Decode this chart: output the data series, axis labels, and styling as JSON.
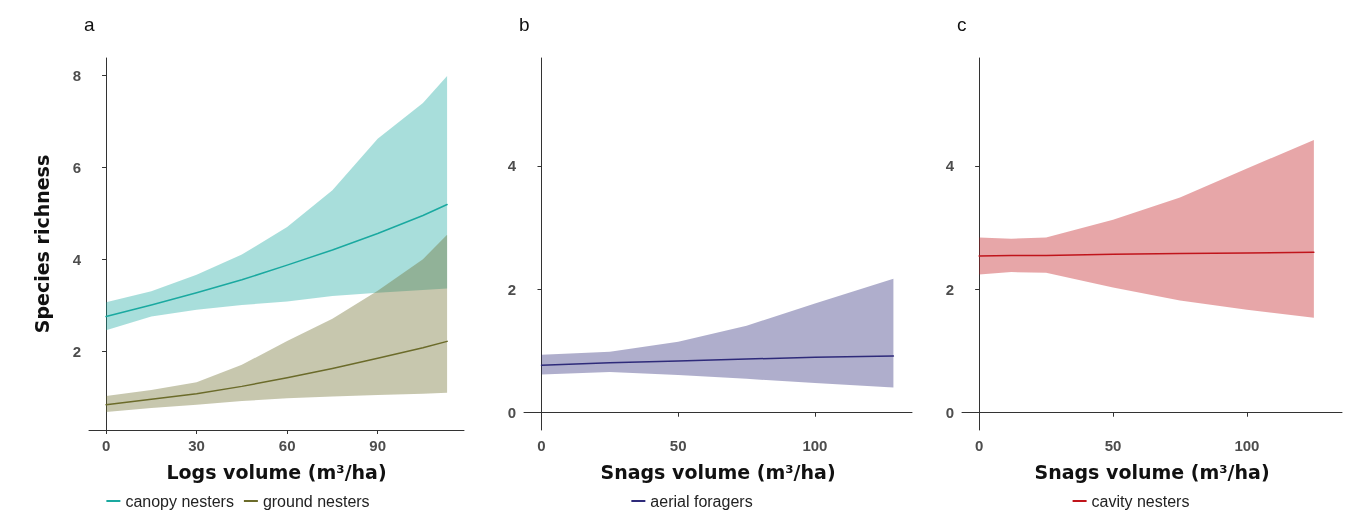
{
  "chart_data": [
    {
      "type": "line",
      "title": "a",
      "xlabel": "Logs volume (m³/ha)",
      "ylabel": "Species richness",
      "xlim": [
        -5.65,
        118.6
      ],
      "ylim": [
        0.28,
        8.38
      ],
      "xticks": [
        0,
        30,
        60,
        90
      ],
      "yticks": [
        2,
        4,
        6,
        8
      ],
      "grid": false,
      "legend": "bottom",
      "marker": "none",
      "line_style": "solid",
      "x": [
        0,
        15,
        30,
        45,
        60,
        75,
        90,
        105,
        113
      ],
      "series": [
        {
          "name": "canopy nesters",
          "color": "#1aa9a0",
          "values": [
            2.75,
            3.0,
            3.27,
            3.55,
            3.87,
            4.2,
            4.56,
            4.95,
            5.19
          ],
          "lower": [
            2.45,
            2.75,
            2.9,
            3.0,
            3.08,
            3.2,
            3.27,
            3.33,
            3.36
          ],
          "upper": [
            3.06,
            3.3,
            3.66,
            4.1,
            4.7,
            5.5,
            6.62,
            7.4,
            7.99
          ]
        },
        {
          "name": "ground nesters",
          "color": "#6b6b2a",
          "values": [
            0.83,
            0.95,
            1.07,
            1.23,
            1.42,
            1.62,
            1.84,
            2.07,
            2.21
          ],
          "lower": [
            0.67,
            0.76,
            0.83,
            0.91,
            0.97,
            1.01,
            1.04,
            1.07,
            1.09
          ],
          "upper": [
            1.02,
            1.15,
            1.32,
            1.7,
            2.22,
            2.7,
            3.31,
            4.0,
            4.53
          ]
        }
      ]
    },
    {
      "type": "line",
      "title": "b",
      "xlabel": "Snags volume (m³/ha)",
      "xlim": [
        -6.4,
        135.5
      ],
      "ylim": [
        -0.28,
        5.75
      ],
      "xticks": [
        0,
        50,
        100
      ],
      "yticks": [
        0,
        2,
        4
      ],
      "grid": false,
      "legend": "bottom",
      "marker": "none",
      "line_style": "solid",
      "x": [
        0,
        25,
        50,
        75,
        100,
        128.7
      ],
      "series": [
        {
          "name": "aerial foragers",
          "color": "#2e2a7a",
          "values": [
            0.77,
            0.81,
            0.84,
            0.87,
            0.9,
            0.92
          ],
          "lower": [
            0.62,
            0.66,
            0.61,
            0.55,
            0.48,
            0.41
          ],
          "upper": [
            0.94,
            0.99,
            1.15,
            1.41,
            1.77,
            2.17
          ]
        }
      ]
    },
    {
      "type": "line",
      "title": "c",
      "xlabel": "Snags volume (m³/ha)",
      "xlim": [
        -6.4,
        135.5
      ],
      "ylim": [
        -0.28,
        5.75
      ],
      "xticks": [
        0,
        50,
        100
      ],
      "yticks": [
        0,
        2,
        4
      ],
      "grid": false,
      "legend": "bottom",
      "marker": "none",
      "line_style": "solid",
      "x": [
        0,
        12,
        25,
        50,
        75,
        100,
        125
      ],
      "series": [
        {
          "name": "cavity nesters",
          "color": "#c0141b",
          "values": [
            2.54,
            2.55,
            2.55,
            2.57,
            2.58,
            2.59,
            2.6
          ],
          "lower": [
            2.24,
            2.28,
            2.27,
            2.03,
            1.82,
            1.67,
            1.54
          ],
          "upper": [
            2.84,
            2.82,
            2.84,
            3.13,
            3.49,
            3.96,
            4.42
          ]
        }
      ]
    }
  ]
}
